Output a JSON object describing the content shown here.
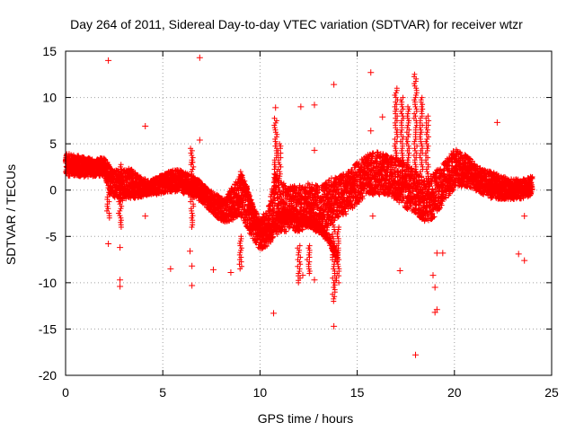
{
  "chart_data": {
    "type": "scatter",
    "title": "Day 264 of 2011, Sidereal Day-to-day VTEC variation (SDTVAR) for receiver wtzr",
    "xlabel": "GPS time / hours",
    "ylabel": "SDTVAR / TECUs",
    "xlim": [
      0,
      25
    ],
    "ylim": [
      -20,
      15
    ],
    "xticks": [
      0,
      5,
      10,
      15,
      20,
      25
    ],
    "yticks": [
      -20,
      -15,
      -10,
      -5,
      0,
      5,
      10,
      15
    ],
    "grid": true,
    "marker": "+",
    "series": [
      {
        "name": "SDTVAR",
        "color": "#ff0000",
        "band": [
          [
            0.0,
            1.5,
            4.0
          ],
          [
            0.5,
            1.5,
            3.8
          ],
          [
            1.0,
            1.4,
            3.6
          ],
          [
            1.5,
            1.5,
            3.3
          ],
          [
            2.0,
            1.5,
            3.6
          ],
          [
            2.3,
            -0.5,
            2.5
          ],
          [
            2.8,
            -1.2,
            2.0
          ],
          [
            3.3,
            -1.0,
            2.5
          ],
          [
            3.8,
            -0.8,
            1.5
          ],
          [
            4.3,
            -0.5,
            1.0
          ],
          [
            4.8,
            -0.5,
            1.5
          ],
          [
            5.3,
            -0.2,
            2.0
          ],
          [
            5.8,
            -0.2,
            2.3
          ],
          [
            6.3,
            -0.5,
            1.8
          ],
          [
            6.8,
            -1.0,
            1.2
          ],
          [
            7.3,
            -2.0,
            0.2
          ],
          [
            7.8,
            -3.0,
            -0.5
          ],
          [
            8.2,
            -3.5,
            -1.0
          ],
          [
            8.6,
            -3.2,
            0.5
          ],
          [
            9.0,
            -2.8,
            1.8
          ],
          [
            9.3,
            -4.0,
            0.5
          ],
          [
            9.7,
            -5.5,
            -2.0
          ],
          [
            10.0,
            -6.5,
            -3.0
          ],
          [
            10.4,
            -6.0,
            -2.0
          ],
          [
            10.8,
            -5.0,
            2.0
          ],
          [
            11.0,
            -4.5,
            1.0
          ],
          [
            11.5,
            -4.5,
            0.5
          ],
          [
            12.0,
            -4.5,
            0.5
          ],
          [
            12.5,
            -4.0,
            0.8
          ],
          [
            13.0,
            -4.5,
            0.5
          ],
          [
            13.5,
            -4.0,
            1.2
          ],
          [
            14.0,
            -3.0,
            1.5
          ],
          [
            14.5,
            -2.5,
            2.0
          ],
          [
            15.0,
            -1.5,
            3.0
          ],
          [
            15.5,
            -0.5,
            3.8
          ],
          [
            16.0,
            -0.5,
            4.2
          ],
          [
            16.5,
            -0.5,
            3.8
          ],
          [
            17.0,
            -1.0,
            3.5
          ],
          [
            17.5,
            -2.0,
            3.0
          ],
          [
            18.0,
            -2.5,
            2.0
          ],
          [
            18.5,
            -3.5,
            1.0
          ],
          [
            19.0,
            -3.0,
            2.0
          ],
          [
            19.5,
            -1.0,
            3.0
          ],
          [
            20.0,
            0.0,
            4.5
          ],
          [
            20.5,
            0.5,
            4.0
          ],
          [
            21.0,
            0.0,
            3.0
          ],
          [
            21.5,
            -0.5,
            2.2
          ],
          [
            22.0,
            -1.0,
            2.0
          ],
          [
            22.5,
            -1.0,
            1.5
          ],
          [
            23.0,
            -1.0,
            1.2
          ],
          [
            23.5,
            -1.0,
            1.2
          ],
          [
            24.0,
            -0.5,
            1.5
          ]
        ],
        "lower_trace": [
          [
            9.0,
            1.5
          ],
          [
            9.3,
            0.0
          ],
          [
            9.6,
            -2.0
          ],
          [
            10.0,
            -4.0
          ],
          [
            10.5,
            -4.5
          ],
          [
            11.0,
            -3.0
          ],
          [
            11.5,
            -2.5
          ],
          [
            12.0,
            -3.0
          ],
          [
            12.5,
            -3.5
          ],
          [
            13.0,
            -4.0
          ],
          [
            13.5,
            -5.0
          ],
          [
            14.0,
            -7.5
          ]
        ],
        "spikes": [
          [
            2.2,
            -3.0,
            2.5
          ],
          [
            2.8,
            -4.0,
            2.8
          ],
          [
            10.8,
            0.0,
            7.8
          ],
          [
            11.0,
            -1.0,
            5.0
          ],
          [
            13.8,
            -12.0,
            -3.0
          ],
          [
            14.0,
            -10.0,
            -4.0
          ],
          [
            17.0,
            3.0,
            11.0
          ],
          [
            17.3,
            2.5,
            10.0
          ],
          [
            17.6,
            2.0,
            9.0
          ],
          [
            18.0,
            2.0,
            12.5
          ],
          [
            18.3,
            1.5,
            10.0
          ],
          [
            18.6,
            1.0,
            8.0
          ],
          [
            12.0,
            -10.0,
            -6.0
          ],
          [
            12.5,
            -9.0,
            -6.0
          ],
          [
            9.0,
            -8.5,
            -5.0
          ],
          [
            6.5,
            -4.0,
            4.5
          ]
        ],
        "outliers": [
          [
            2.2,
            14.0
          ],
          [
            6.9,
            14.3
          ],
          [
            4.1,
            6.9
          ],
          [
            6.9,
            5.4
          ],
          [
            6.5,
            3.0
          ],
          [
            6.4,
            -6.6
          ],
          [
            6.5,
            -8.2
          ],
          [
            6.5,
            -10.3
          ],
          [
            5.4,
            -8.5
          ],
          [
            7.6,
            -8.6
          ],
          [
            2.2,
            -5.8
          ],
          [
            2.8,
            -6.2
          ],
          [
            2.8,
            -9.7
          ],
          [
            2.8,
            -10.4
          ],
          [
            10.8,
            8.9
          ],
          [
            12.1,
            9.0
          ],
          [
            12.8,
            9.2
          ],
          [
            12.8,
            4.3
          ],
          [
            10.7,
            -13.3
          ],
          [
            13.8,
            11.4
          ],
          [
            15.7,
            12.7
          ],
          [
            15.7,
            6.4
          ],
          [
            13.8,
            -14.7
          ],
          [
            16.3,
            7.9
          ],
          [
            17.2,
            -8.7
          ],
          [
            18.0,
            -17.8
          ],
          [
            18.9,
            -9.2
          ],
          [
            19.0,
            -10.5
          ],
          [
            19.0,
            -13.2
          ],
          [
            19.1,
            -12.9
          ],
          [
            19.1,
            -6.8
          ],
          [
            19.4,
            -6.8
          ],
          [
            22.2,
            7.3
          ],
          [
            23.3,
            -6.9
          ],
          [
            23.6,
            -7.6
          ],
          [
            4.1,
            -2.8
          ],
          [
            15.8,
            -2.8
          ],
          [
            23.6,
            -2.8
          ],
          [
            8.5,
            -8.9
          ],
          [
            12.2,
            -9.2
          ],
          [
            12.8,
            -9.7
          ]
        ]
      }
    ]
  }
}
